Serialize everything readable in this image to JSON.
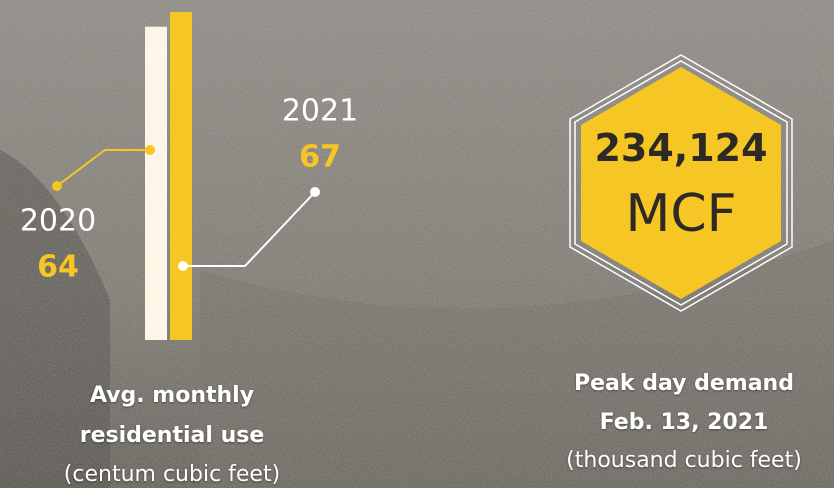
{
  "chart_data": {
    "type": "bar",
    "title": "Avg. monthly residential use",
    "subtitle": "(centum cubic feet)",
    "categories": [
      "2020",
      "2021"
    ],
    "values": [
      64,
      67
    ],
    "colors": [
      "#fbf6e6",
      "#f6c624"
    ]
  },
  "stat": {
    "value_label": "234,124",
    "unit": "MCF",
    "title": "Peak day demand",
    "date": "Feb. 13, 2021",
    "note": "(thousand cubic feet)"
  }
}
